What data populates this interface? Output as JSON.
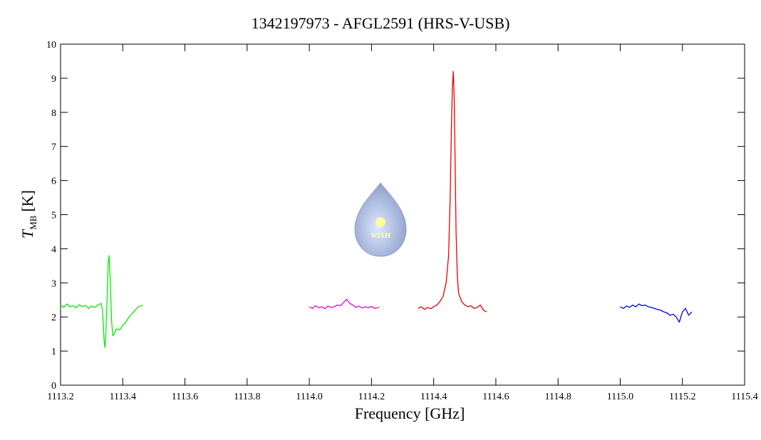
{
  "chart_data": {
    "type": "line",
    "title": "1342197973 - AFGL2591 (HRS-V-USB)",
    "xlabel": "Frequency [GHz]",
    "ylabel": "T",
    "ylabel_subscript": "MB",
    "ylabel_unit": "[K]",
    "logo_text": "WISH",
    "xlim": [
      1113.2,
      1115.4
    ],
    "ylim": [
      0,
      10
    ],
    "xticks": [
      1113.2,
      1113.4,
      1113.6,
      1113.8,
      {
        "value": 1114.0,
        "label": "1114.0"
      },
      1114.2,
      1114.4,
      1114.6,
      1114.8,
      {
        "value": 1115.0,
        "label": "1115.0"
      },
      1115.2,
      1115.4
    ],
    "yticks": [
      0,
      1,
      2,
      3,
      4,
      5,
      6,
      7,
      8,
      9,
      10
    ],
    "grid": false,
    "series": [
      {
        "color": "#00ee00",
        "x": [
          1113.2,
          1113.21,
          1113.22,
          1113.23,
          1113.24,
          1113.25,
          1113.26,
          1113.27,
          1113.28,
          1113.29,
          1113.3,
          1113.31,
          1113.32,
          1113.33,
          1113.335,
          1113.34,
          1113.343,
          1113.346,
          1113.35,
          1113.353,
          1113.356,
          1113.36,
          1113.364,
          1113.368,
          1113.372,
          1113.38,
          1113.39,
          1113.4,
          1113.41,
          1113.42,
          1113.43,
          1113.44,
          1113.45,
          1113.465
        ],
        "values": [
          2.35,
          2.28,
          2.38,
          2.3,
          2.33,
          2.27,
          2.36,
          2.3,
          2.34,
          2.25,
          2.32,
          2.28,
          2.35,
          2.4,
          2.2,
          1.3,
          1.1,
          1.6,
          2.6,
          3.6,
          3.8,
          3.0,
          1.9,
          1.45,
          1.5,
          1.65,
          1.62,
          1.75,
          1.85,
          2.0,
          2.1,
          2.2,
          2.3,
          2.35
        ]
      },
      {
        "color": "#ee00ee",
        "x": [
          1114.0,
          1114.01,
          1114.02,
          1114.03,
          1114.04,
          1114.05,
          1114.06,
          1114.07,
          1114.08,
          1114.09,
          1114.1,
          1114.11,
          1114.12,
          1114.13,
          1114.14,
          1114.15,
          1114.16,
          1114.17,
          1114.18,
          1114.19,
          1114.2,
          1114.21,
          1114.225
        ],
        "values": [
          2.3,
          2.25,
          2.33,
          2.27,
          2.3,
          2.24,
          2.32,
          2.28,
          2.3,
          2.35,
          2.33,
          2.42,
          2.52,
          2.4,
          2.35,
          2.28,
          2.32,
          2.26,
          2.3,
          2.27,
          2.31,
          2.25,
          2.28
        ]
      },
      {
        "color": "#ee0000",
        "x": [
          1114.35,
          1114.36,
          1114.37,
          1114.38,
          1114.39,
          1114.4,
          1114.41,
          1114.42,
          1114.43,
          1114.44,
          1114.448,
          1114.453,
          1114.457,
          1114.46,
          1114.463,
          1114.466,
          1114.469,
          1114.472,
          1114.476,
          1114.48,
          1114.49,
          1114.5,
          1114.51,
          1114.52,
          1114.53,
          1114.54,
          1114.55,
          1114.56,
          1114.57
        ],
        "values": [
          2.25,
          2.3,
          2.22,
          2.28,
          2.24,
          2.3,
          2.35,
          2.45,
          2.6,
          3.0,
          3.8,
          5.5,
          7.5,
          8.7,
          9.2,
          8.4,
          6.5,
          4.5,
          3.2,
          2.7,
          2.45,
          2.35,
          2.3,
          2.33,
          2.25,
          2.28,
          2.35,
          2.2,
          2.15
        ]
      },
      {
        "color": "#0000ee",
        "x": [
          1115.0,
          1115.01,
          1115.02,
          1115.03,
          1115.04,
          1115.05,
          1115.06,
          1115.07,
          1115.08,
          1115.09,
          1115.1,
          1115.11,
          1115.12,
          1115.13,
          1115.14,
          1115.15,
          1115.16,
          1115.17,
          1115.18,
          1115.19,
          1115.195,
          1115.2,
          1115.21,
          1115.22,
          1115.23
        ],
        "values": [
          2.3,
          2.25,
          2.32,
          2.28,
          2.35,
          2.3,
          2.38,
          2.33,
          2.35,
          2.3,
          2.28,
          2.25,
          2.22,
          2.2,
          2.15,
          2.12,
          2.05,
          2.08,
          2.0,
          1.85,
          2.0,
          2.15,
          2.25,
          2.05,
          2.15
        ]
      }
    ]
  }
}
